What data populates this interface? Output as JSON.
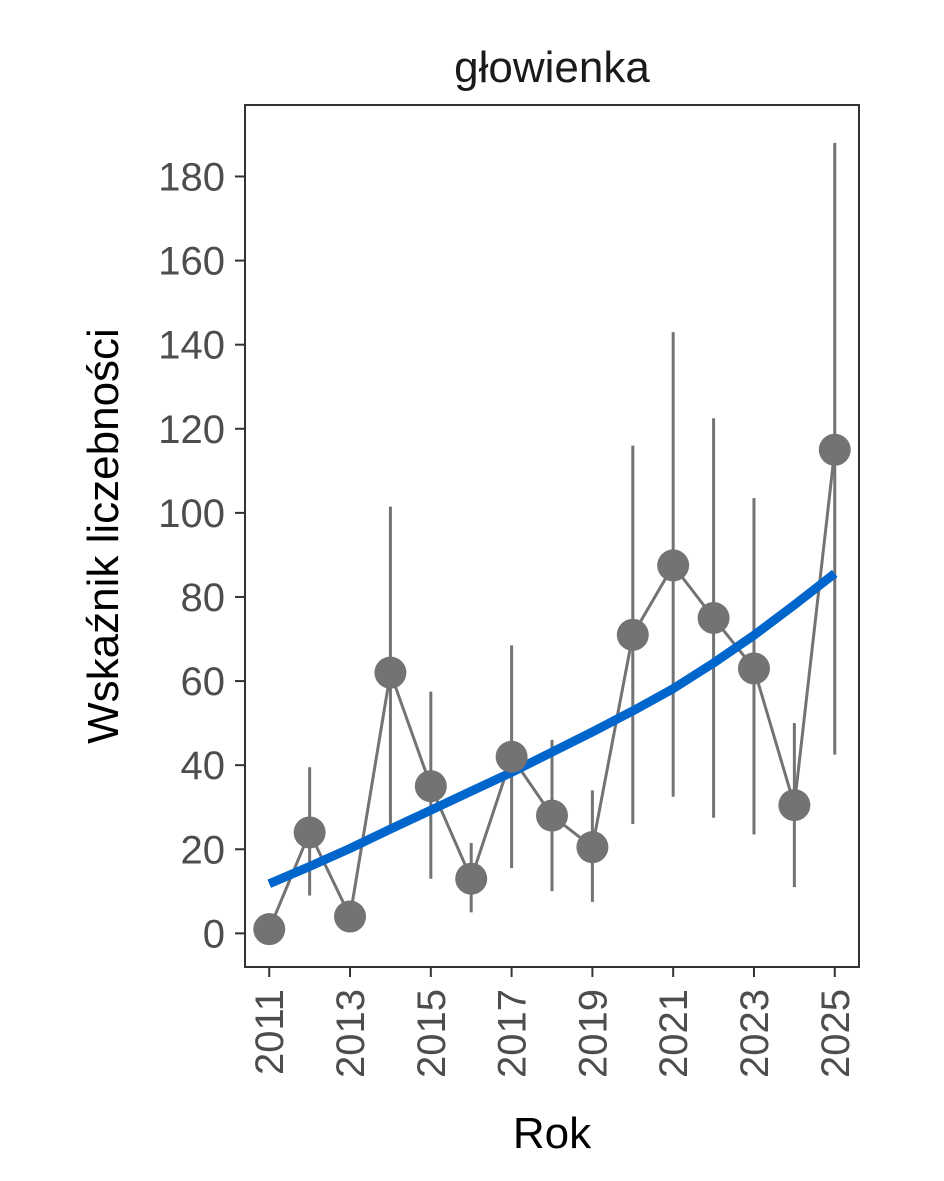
{
  "chart_data": {
    "type": "line",
    "title": "głowienka",
    "xlabel": "Rok",
    "ylabel": "Wskaźnik liczebności",
    "xlim": [
      2010.4,
      2025.6
    ],
    "ylim": [
      -8,
      197
    ],
    "x_ticks": [
      2011,
      2013,
      2015,
      2017,
      2019,
      2021,
      2023,
      2025
    ],
    "y_ticks": [
      0,
      20,
      40,
      60,
      80,
      100,
      120,
      140,
      160,
      180
    ],
    "grid": false,
    "legend": "none",
    "series": [
      {
        "kind": "points-with-errorbars",
        "color": "#737373",
        "x": [
          2011,
          2012,
          2013,
          2014,
          2015,
          2016,
          2017,
          2018,
          2019,
          2020,
          2021,
          2022,
          2023,
          2024,
          2025
        ],
        "y": [
          1,
          24,
          4,
          62,
          35,
          13,
          42,
          28,
          20.5,
          71,
          87.5,
          75,
          63,
          30.5,
          115
        ],
        "lower": [
          0.5,
          9,
          1,
          25,
          13,
          5,
          15.5,
          10,
          7.5,
          26,
          32.5,
          27.5,
          23.5,
          11,
          42.5
        ],
        "upper": [
          1.5,
          39.5,
          7,
          101.5,
          57.5,
          21.5,
          68.5,
          46,
          34,
          116,
          143,
          122.5,
          103.5,
          50,
          188
        ]
      },
      {
        "kind": "trend",
        "color": "#0066cc",
        "x": [
          2011,
          2012,
          2013,
          2014,
          2015,
          2016,
          2017,
          2018,
          2019,
          2020,
          2021,
          2022,
          2023,
          2024,
          2025
        ],
        "y": [
          11.8,
          15.9,
          20.2,
          24.8,
          29.3,
          33.8,
          38.3,
          43.1,
          47.9,
          52.9,
          58.2,
          64.3,
          70.9,
          78.1,
          85.6
        ]
      }
    ]
  }
}
